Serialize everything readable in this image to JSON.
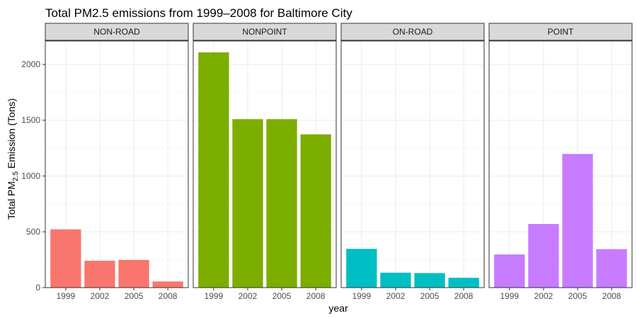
{
  "chart_data": {
    "type": "bar",
    "title": "Total PM2.5 emissions from 1999–2008 for Baltimore City",
    "xlabel": "year",
    "ylabel": {
      "prefix": "Total PM",
      "subscript": "2.5",
      "suffix": " Emission (Tons)"
    },
    "ylim": [
      0,
      2210
    ],
    "yticks": [
      0,
      500,
      1000,
      1500,
      2000
    ],
    "categories": [
      "1999",
      "2002",
      "2005",
      "2008"
    ],
    "grid": true,
    "legend": "none",
    "facets": [
      {
        "name": "NON-ROAD",
        "color": "#F8766D",
        "values": [
          522,
          241,
          248,
          55
        ]
      },
      {
        "name": "NONPOINT",
        "color": "#7CAE00",
        "values": [
          2108,
          1510,
          1510,
          1373
        ]
      },
      {
        "name": "ON-ROAD",
        "color": "#00BFC4",
        "values": [
          347,
          134,
          130,
          88
        ]
      },
      {
        "name": "POINT",
        "color": "#C77CFF",
        "values": [
          297,
          570,
          1198,
          345
        ]
      }
    ]
  }
}
